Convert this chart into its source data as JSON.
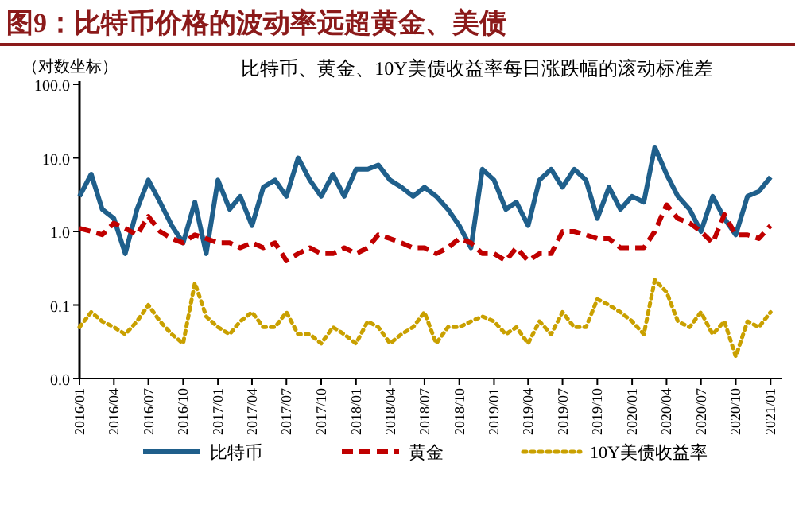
{
  "chart_data": {
    "type": "line",
    "title": "图9：比特币价格的波动率远超黄金、美债",
    "subtitle": "比特币、黄金、10Y美债收益率每日涨跌幅的滚动标准差",
    "ylabel": "（对数坐标）",
    "x": [
      "2016-01",
      "2016-02",
      "2016-03",
      "2016-04",
      "2016-05",
      "2016-06",
      "2016-07",
      "2016-08",
      "2016-09",
      "2016-10",
      "2016-11",
      "2016-12",
      "2017-01",
      "2017-02",
      "2017-03",
      "2017-04",
      "2017-05",
      "2017-06",
      "2017-07",
      "2017-08",
      "2017-09",
      "2017-10",
      "2017-11",
      "2017-12",
      "2018-01",
      "2018-02",
      "2018-03",
      "2018-04",
      "2018-05",
      "2018-06",
      "2018-07",
      "2018-08",
      "2018-09",
      "2018-10",
      "2018-11",
      "2018-12",
      "2019-01",
      "2019-02",
      "2019-03",
      "2019-04",
      "2019-05",
      "2019-06",
      "2019-07",
      "2019-08",
      "2019-09",
      "2019-10",
      "2019-11",
      "2019-12",
      "2020-01",
      "2020-02",
      "2020-03",
      "2020-04",
      "2020-05",
      "2020-06",
      "2020-07",
      "2020-08",
      "2020-09",
      "2020-10",
      "2020-11",
      "2020-12",
      "2021-01"
    ],
    "series": [
      {
        "name": "比特币",
        "color": "#1f5f8b",
        "line_style": "solid",
        "values": [
          3,
          6,
          2,
          1.5,
          0.5,
          2,
          5,
          2.5,
          1.2,
          0.7,
          2.5,
          0.5,
          5,
          2,
          3,
          1.2,
          4,
          5,
          3,
          10,
          5,
          3,
          6,
          3,
          7,
          7,
          8,
          5,
          4,
          3,
          4,
          3,
          2,
          1.2,
          0.6,
          7,
          5,
          2,
          2.5,
          1.2,
          5,
          7,
          4,
          7,
          5,
          1.5,
          4,
          2,
          3,
          2.5,
          14,
          6,
          3,
          2,
          1,
          3,
          1.5,
          0.9,
          3,
          3.5,
          5.5
        ]
      },
      {
        "name": "黄金",
        "color": "#c00000",
        "line_style": "dashed",
        "values": [
          1.1,
          1.0,
          0.9,
          1.3,
          1.1,
          0.9,
          1.6,
          1.0,
          0.8,
          0.7,
          0.9,
          0.8,
          0.7,
          0.7,
          0.6,
          0.7,
          0.6,
          0.7,
          0.4,
          0.5,
          0.6,
          0.5,
          0.5,
          0.6,
          0.5,
          0.6,
          0.9,
          0.8,
          0.7,
          0.6,
          0.6,
          0.5,
          0.6,
          0.8,
          0.7,
          0.5,
          0.5,
          0.4,
          0.6,
          0.4,
          0.5,
          0.5,
          1.0,
          1.0,
          0.9,
          0.8,
          0.8,
          0.6,
          0.6,
          0.6,
          1.0,
          2.3,
          1.5,
          1.3,
          1.0,
          0.7,
          1.7,
          0.9,
          0.9,
          0.8,
          1.2
        ]
      },
      {
        "name": "10Y美债收益率",
        "color": "#c9a000",
        "line_style": "dotted",
        "values": [
          0.05,
          0.08,
          0.06,
          0.05,
          0.04,
          0.06,
          0.1,
          0.06,
          0.04,
          0.03,
          0.2,
          0.07,
          0.05,
          0.04,
          0.06,
          0.08,
          0.05,
          0.05,
          0.08,
          0.04,
          0.04,
          0.03,
          0.05,
          0.04,
          0.03,
          0.06,
          0.05,
          0.03,
          0.04,
          0.05,
          0.08,
          0.03,
          0.05,
          0.05,
          0.06,
          0.07,
          0.06,
          0.04,
          0.05,
          0.03,
          0.06,
          0.04,
          0.08,
          0.05,
          0.05,
          0.12,
          0.1,
          0.08,
          0.06,
          0.04,
          0.22,
          0.15,
          0.06,
          0.05,
          0.08,
          0.04,
          0.06,
          0.02,
          0.06,
          0.05,
          0.08
        ]
      }
    ],
    "log": true,
    "ylim": [
      0.01,
      100
    ],
    "yticks": [
      {
        "value": 0.01,
        "label": "0.0"
      },
      0.1,
      {
        "value": 1,
        "label": "1.0"
      },
      {
        "value": 10,
        "label": "10.0"
      },
      {
        "value": 100,
        "label": "100.0"
      }
    ],
    "xlim": [
      "2016-01",
      "2021-02"
    ],
    "xticks": [
      {
        "value": "2016-01",
        "label": "2016/01"
      },
      {
        "value": "2016-04",
        "label": "2016/04"
      },
      {
        "value": "2016-07",
        "label": "2016/07"
      },
      {
        "value": "2016-10",
        "label": "2016/10"
      },
      {
        "value": "2017-01",
        "label": "2017/01"
      },
      {
        "value": "2017-04",
        "label": "2017/04"
      },
      {
        "value": "2017-07",
        "label": "2017/07"
      },
      {
        "value": "2017-10",
        "label": "2017/10"
      },
      {
        "value": "2018-01",
        "label": "2018/01"
      },
      {
        "value": "2018-04",
        "label": "2018/04"
      },
      {
        "value": "2018-07",
        "label": "2018/07"
      },
      {
        "value": "2018-10",
        "label": "2018/10"
      },
      {
        "value": "2019-01",
        "label": "2019/01"
      },
      {
        "value": "2019-04",
        "label": "2019/04"
      },
      {
        "value": "2019-07",
        "label": "2019/07"
      },
      {
        "value": "2019-10",
        "label": "2019/10"
      },
      {
        "value": "2020-01",
        "label": "2020/01"
      },
      {
        "value": "2020-04",
        "label": "2020/04"
      },
      {
        "value": "2020-07",
        "label": "2020/07"
      },
      {
        "value": "2020-10",
        "label": "2020/10"
      },
      {
        "value": "2021-01",
        "label": "2021/01"
      }
    ],
    "legend": "bottom",
    "grid": false
  }
}
